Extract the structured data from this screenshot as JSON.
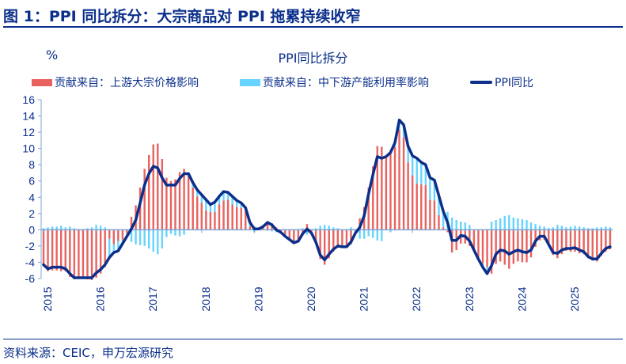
{
  "header": {
    "title": "图 1：PPI 同比拆分：大宗商品对 PPI 拖累持续收窄"
  },
  "footer": {
    "source": "资料来源：CEIC，申万宏源研究"
  },
  "colors": {
    "upstream": "#E8625F",
    "downstream": "#66D4FF",
    "ppi": "#0B2F8A",
    "axis": "#7FA6D6"
  },
  "chart_data": {
    "type": "bar+line",
    "title": "PPI同比拆分",
    "ylabel": "%",
    "ylim": [
      -6,
      16
    ],
    "yticks": [
      16,
      14,
      12,
      10,
      8,
      6,
      4,
      2,
      0,
      -2,
      -4,
      -6
    ],
    "xticks": [
      "2015",
      "2016",
      "2017",
      "2018",
      "2019",
      "2020",
      "2021",
      "2022",
      "2023",
      "2024",
      "2025"
    ],
    "x_start": "2015-01",
    "x_end": "2025-10",
    "frequency": "monthly",
    "grid": false,
    "legend_placement": "top",
    "series": [
      {
        "name": "贡献来自：上游大宗价格影响",
        "kind": "bar",
        "values": [
          -4.5,
          -5.1,
          -5.0,
          -5.0,
          -5.1,
          -5.1,
          -5.8,
          -6.1,
          -6.0,
          -6.0,
          -6.1,
          -6.2,
          -5.9,
          -5.4,
          -4.6,
          -1.1,
          -1.8,
          -1.4,
          -1.2,
          -0.4,
          1.6,
          3.0,
          5.2,
          7.5,
          9.2,
          10.5,
          10.6,
          8.7,
          6.4,
          6.0,
          6.2,
          7.1,
          7.5,
          6.6,
          5.2,
          4.1,
          3.3,
          2.4,
          2.2,
          2.2,
          3.1,
          3.6,
          3.7,
          3.1,
          2.8,
          2.7,
          2.3,
          0.4,
          0.4,
          0.0,
          0.2,
          1.0,
          0.8,
          0.3,
          -0.3,
          -0.6,
          -1.1,
          -1.6,
          -1.5,
          -0.7,
          0.7,
          -0.2,
          -1.7,
          -3.6,
          -4.3,
          -3.5,
          -2.7,
          -2.2,
          -2.1,
          -2.1,
          -1.8,
          -0.1,
          1.4,
          2.8,
          5.2,
          7.8,
          10.3,
          10.2,
          9.0,
          9.8,
          10.2,
          12.3,
          11.4,
          8.3,
          6.7,
          5.7,
          5.6,
          5.5,
          3.7,
          3.6,
          1.8,
          0.3,
          -0.3,
          -2.8,
          -2.5,
          -1.7,
          -1.7,
          -2.0,
          -2.5,
          -3.4,
          -4.1,
          -4.6,
          -5.4,
          -4.2,
          -3.9,
          -4.3,
          -4.8,
          -4.2,
          -3.9,
          -4.0,
          -4.0,
          -3.4,
          -2.1,
          -1.3,
          -1.2,
          -2.0,
          -3.1,
          -3.5,
          -3.0,
          -2.6,
          -2.7,
          -2.7,
          -2.9,
          -3.0,
          -3.5,
          -3.8,
          -3.9,
          -3.2,
          -2.7,
          -2.4
        ]
      },
      {
        "name": "贡献来自：中下游产能利用率影响",
        "kind": "bar",
        "values": [
          0.2,
          0.3,
          0.4,
          0.4,
          0.5,
          0.3,
          0.4,
          0.2,
          0.1,
          0.1,
          0.2,
          0.3,
          0.6,
          0.5,
          0.3,
          -2.3,
          -1.0,
          -1.2,
          -0.5,
          -0.4,
          -1.5,
          -1.8,
          -1.9,
          -2.0,
          -2.3,
          -2.7,
          -3.0,
          -2.3,
          -0.9,
          -0.5,
          -0.7,
          -0.8,
          -0.6,
          0.3,
          0.6,
          0.8,
          1.0,
          1.3,
          0.9,
          1.2,
          1.0,
          1.1,
          0.9,
          1.0,
          0.8,
          0.6,
          0.4,
          0.5,
          -0.3,
          0.1,
          0.2,
          -0.1,
          -0.2,
          -0.3,
          0.0,
          -0.2,
          -0.1,
          0.0,
          0.1,
          0.2,
          -0.6,
          -0.2,
          0.2,
          0.5,
          0.6,
          0.5,
          0.3,
          0.2,
          0.0,
          0.0,
          0.3,
          -0.3,
          -1.1,
          -1.1,
          -0.8,
          -1.0,
          -1.3,
          -1.4,
          0.0,
          -0.3,
          0.5,
          1.2,
          1.5,
          2.0,
          2.4,
          3.1,
          2.7,
          2.5,
          2.7,
          2.5,
          2.4,
          2.0,
          2.2,
          1.5,
          1.2,
          1.0,
          0.9,
          0.6,
          0.0,
          -0.2,
          -0.5,
          -0.8,
          1.0,
          1.2,
          1.4,
          1.7,
          1.8,
          1.5,
          1.4,
          1.3,
          1.2,
          0.9,
          0.7,
          0.5,
          0.4,
          0.2,
          0.3,
          0.6,
          0.5,
          0.3,
          0.4,
          0.5,
          0.4,
          0.3,
          0.2,
          0.2,
          0.3,
          0.3,
          0.4,
          0.3
        ]
      },
      {
        "name": "PPI同比",
        "kind": "line",
        "values": [
          -4.3,
          -4.8,
          -4.6,
          -4.6,
          -4.6,
          -4.8,
          -5.4,
          -5.9,
          -5.9,
          -5.9,
          -5.9,
          -5.9,
          -5.3,
          -4.9,
          -4.3,
          -3.4,
          -2.8,
          -2.6,
          -1.7,
          -0.8,
          0.1,
          1.2,
          3.3,
          5.5,
          6.9,
          7.8,
          7.6,
          6.4,
          5.5,
          5.5,
          5.5,
          6.3,
          6.9,
          6.9,
          5.8,
          4.9,
          4.3,
          3.7,
          3.1,
          3.4,
          4.1,
          4.7,
          4.6,
          4.1,
          3.6,
          3.3,
          2.7,
          0.9,
          0.1,
          0.1,
          0.4,
          0.9,
          0.6,
          0.0,
          -0.3,
          -0.8,
          -1.2,
          -1.6,
          -1.4,
          -0.5,
          0.1,
          -0.4,
          -1.5,
          -3.1,
          -3.7,
          -3.0,
          -2.4,
          -2.0,
          -2.1,
          -2.1,
          -1.5,
          -0.4,
          0.3,
          1.7,
          4.4,
          6.8,
          9.0,
          8.8,
          9.0,
          9.5,
          10.7,
          13.5,
          12.9,
          10.3,
          9.1,
          8.8,
          8.3,
          8.0,
          6.4,
          6.1,
          4.2,
          2.3,
          0.9,
          -1.3,
          -1.3,
          -0.7,
          -0.8,
          -1.4,
          -2.5,
          -3.6,
          -4.6,
          -5.4,
          -4.4,
          -3.0,
          -2.5,
          -2.6,
          -3.0,
          -2.7,
          -2.5,
          -2.7,
          -2.8,
          -2.5,
          -1.4,
          -0.8,
          -0.8,
          -1.8,
          -2.8,
          -2.9,
          -2.5,
          -2.3,
          -2.3,
          -2.2,
          -2.5,
          -2.7,
          -3.3,
          -3.6,
          -3.6,
          -2.9,
          -2.3,
          -2.1
        ]
      }
    ]
  }
}
